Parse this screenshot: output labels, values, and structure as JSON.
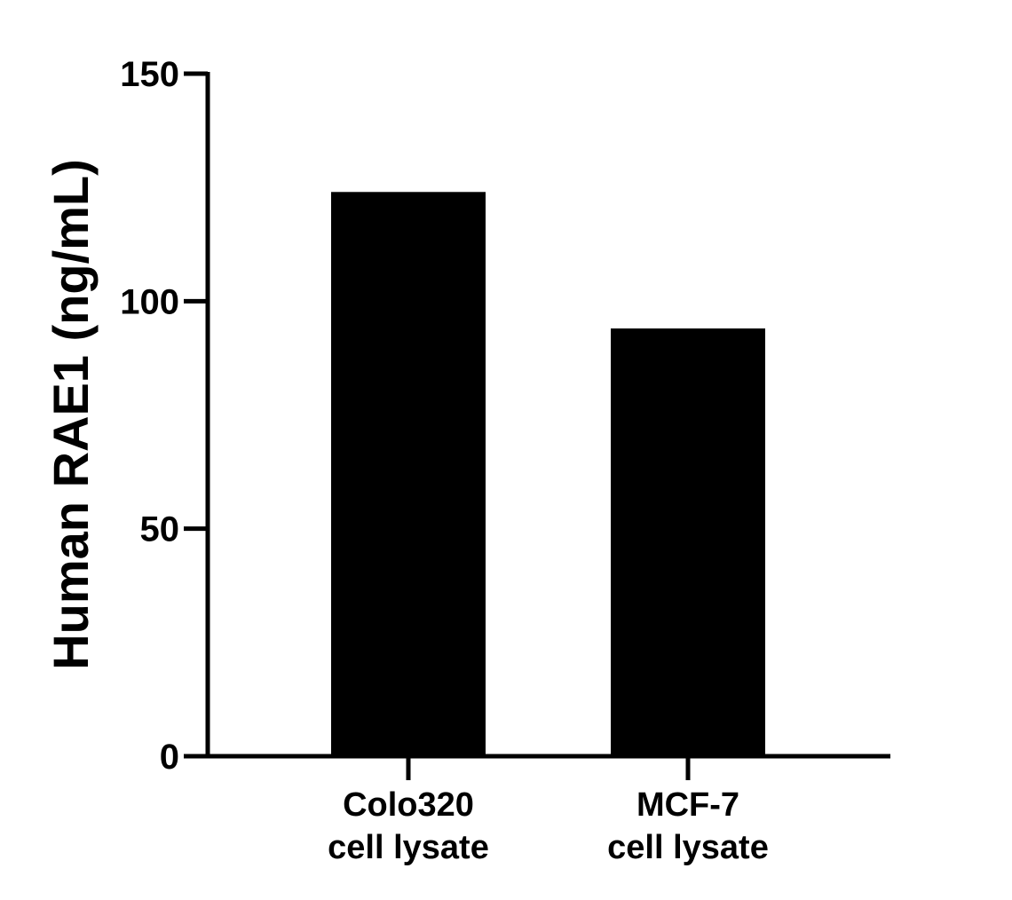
{
  "chart_data": {
    "type": "bar",
    "categories": [
      [
        "Colo320",
        "cell lysate"
      ],
      [
        "MCF-7",
        "cell lysate"
      ]
    ],
    "values": [
      124,
      94
    ],
    "title": "",
    "xlabel": "",
    "ylabel": "Human RAE1 (ng/mL)",
    "ylim": [
      0,
      150
    ],
    "yticks": [
      "0",
      "50",
      "100",
      "150"
    ],
    "grid": false,
    "legend": "none",
    "bar_color": "#000000",
    "axis_color": "#000000"
  }
}
